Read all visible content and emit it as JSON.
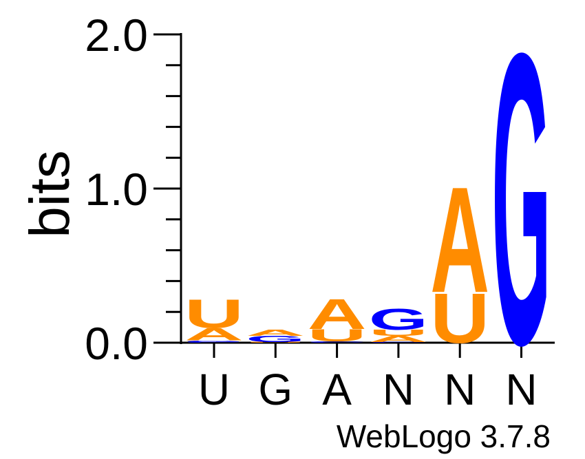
{
  "chart_data": {
    "type": "sequence-logo",
    "ylabel": "bits",
    "ylim": [
      0,
      2
    ],
    "yticks": [
      "0.0",
      "1.0",
      "2.0"
    ],
    "yminor_ticks": [
      0.2,
      0.4,
      0.6,
      0.8,
      1.2,
      1.4,
      1.6,
      1.8
    ],
    "categories": [
      "U",
      "G",
      "A",
      "N",
      "N",
      "N"
    ],
    "colors": {
      "A": "#FF8C00",
      "U": "#FF8C00",
      "G": "#0000FF",
      "C": "#0000FF"
    },
    "stacks": [
      [
        {
          "letter": "C",
          "value": 0.005
        },
        {
          "letter": "G",
          "value": 0.01
        },
        {
          "letter": "A",
          "value": 0.08
        },
        {
          "letter": "U",
          "value": 0.19
        }
      ],
      [
        {
          "letter": "U",
          "value": 0.005
        },
        {
          "letter": "G",
          "value": 0.04
        },
        {
          "letter": "A",
          "value": 0.04
        }
      ],
      [
        {
          "letter": "C",
          "value": 0.01
        },
        {
          "letter": "U",
          "value": 0.08
        },
        {
          "letter": "A",
          "value": 0.2
        }
      ],
      [
        {
          "letter": "C",
          "value": 0.005
        },
        {
          "letter": "A",
          "value": 0.04
        },
        {
          "letter": "U",
          "value": 0.04
        },
        {
          "letter": "G",
          "value": 0.14
        }
      ],
      [
        {
          "letter": "U",
          "value": 0.33
        },
        {
          "letter": "A",
          "value": 0.7
        }
      ],
      [
        {
          "letter": "G",
          "value": 1.93
        }
      ]
    ]
  },
  "footer": {
    "credit": "WebLogo 3.7.8"
  }
}
